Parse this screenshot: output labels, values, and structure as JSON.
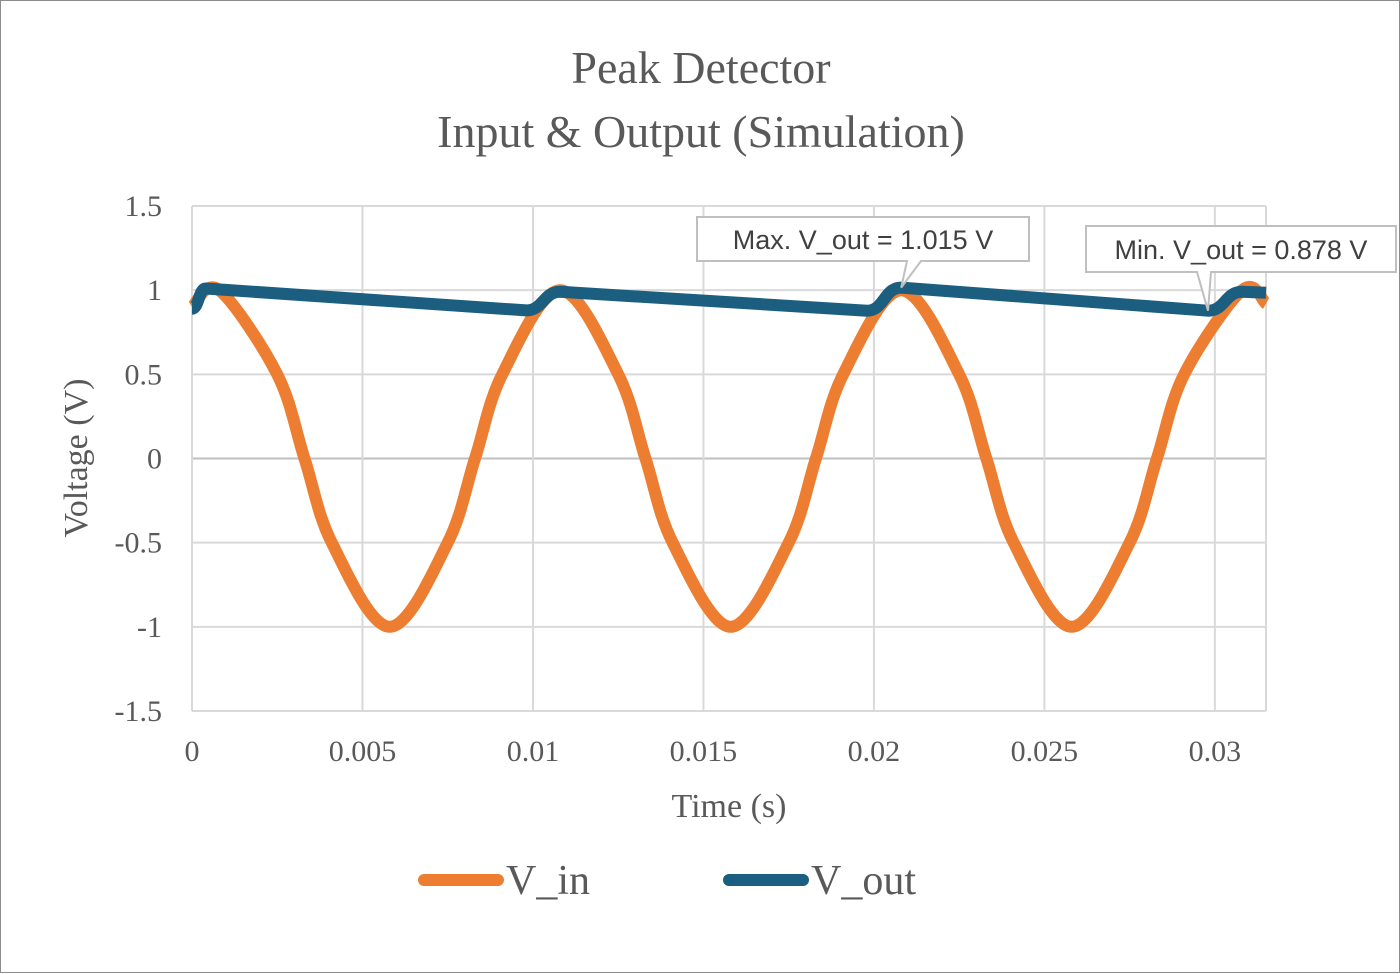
{
  "chart_data": {
    "type": "line",
    "title_lines": [
      "Peak Detector",
      "Input & Output (Simulation)"
    ],
    "xlabel": "Time (s)",
    "ylabel": "Voltage (V)",
    "xlim": [
      0,
      0.0315
    ],
    "ylim": [
      -1.5,
      1.5
    ],
    "x_ticks": [
      0,
      0.005,
      0.01,
      0.015,
      0.02,
      0.025,
      0.03
    ],
    "x_tick_labels": [
      "0",
      "0.005",
      "0.01",
      "0.015",
      "0.02",
      "0.025",
      "0.03"
    ],
    "y_ticks": [
      1.5,
      1,
      0.5,
      0,
      -0.5,
      -1,
      -1.5
    ],
    "y_tick_labels": [
      "1.5",
      "1",
      "0.5",
      "0",
      "-0.5",
      "-1",
      "-1.5"
    ],
    "grid": true,
    "legend_position": "bottom",
    "series": [
      {
        "name": "V_in",
        "color": "#ED7D31",
        "points": [
          [
            0,
            0.9
          ],
          [
            0.0008,
            1.0
          ],
          [
            0.0025,
            0.5
          ],
          [
            0.0033,
            0.0
          ],
          [
            0.0041,
            -0.5
          ],
          [
            0.0058,
            -1.0
          ],
          [
            0.0075,
            -0.5
          ],
          [
            0.0083,
            0.0
          ],
          [
            0.0091,
            0.5
          ],
          [
            0.0108,
            1.0
          ],
          [
            0.0125,
            0.5
          ],
          [
            0.0133,
            0.0
          ],
          [
            0.0141,
            -0.5
          ],
          [
            0.0158,
            -1.0
          ],
          [
            0.0175,
            -0.5
          ],
          [
            0.0183,
            0.0
          ],
          [
            0.0191,
            0.5
          ],
          [
            0.0208,
            1.0
          ],
          [
            0.0225,
            0.5
          ],
          [
            0.0233,
            0.0
          ],
          [
            0.0241,
            -0.5
          ],
          [
            0.0258,
            -1.0
          ],
          [
            0.0275,
            -0.5
          ],
          [
            0.0283,
            0.0
          ],
          [
            0.0291,
            0.5
          ],
          [
            0.0308,
            1.0
          ],
          [
            0.0315,
            0.92
          ]
        ]
      },
      {
        "name": "V_out",
        "color": "#1B5E80",
        "points": [
          [
            0,
            0.89
          ],
          [
            0.0004,
            1.01
          ],
          [
            0.0098,
            0.88
          ],
          [
            0.0108,
            0.99
          ],
          [
            0.0198,
            0.878
          ],
          [
            0.0208,
            1.015
          ],
          [
            0.0298,
            0.878
          ],
          [
            0.0308,
            0.99
          ],
          [
            0.0315,
            0.985
          ]
        ]
      }
    ],
    "annotations": [
      {
        "text": "Max. V_out = 1.015 V",
        "x": 0.0208,
        "y": 1.015
      },
      {
        "text": "Min. V_out = 0.878 V",
        "x": 0.0298,
        "y": 0.878
      }
    ]
  }
}
